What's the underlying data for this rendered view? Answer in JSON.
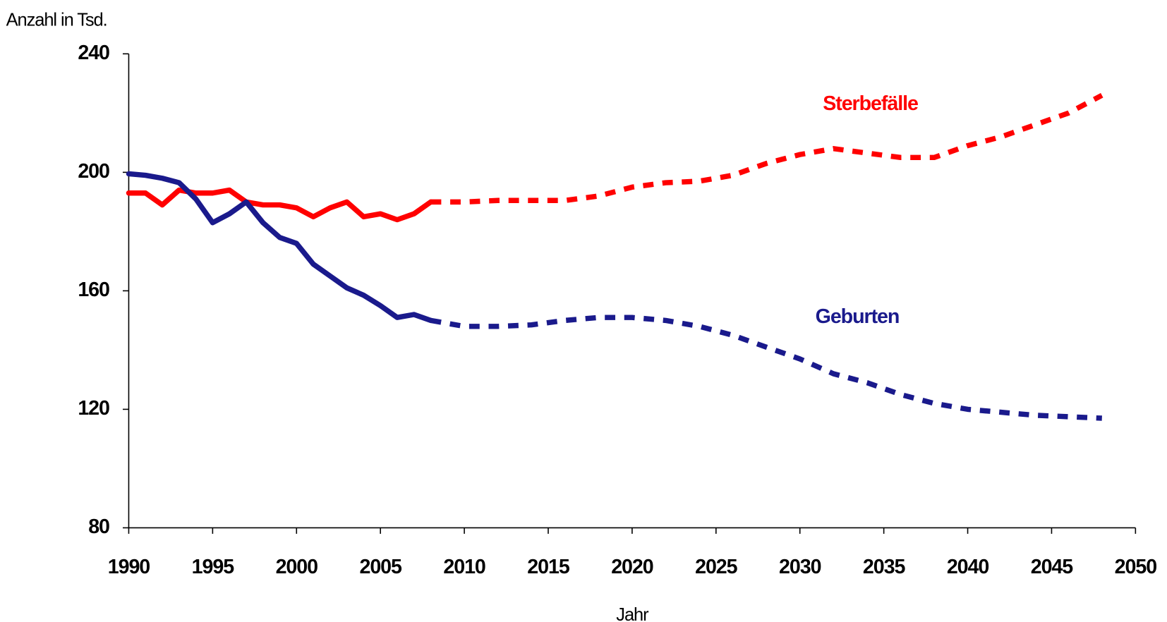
{
  "chart_data": {
    "type": "line",
    "ylabel": "Anzahl in Tsd.",
    "xlabel": "Jahr",
    "xlim": [
      1990,
      2050
    ],
    "xticks": [
      1990,
      1995,
      2000,
      2005,
      2010,
      2015,
      2020,
      2025,
      2030,
      2035,
      2040,
      2045,
      2050
    ],
    "ylim": [
      80,
      240
    ],
    "yticks": [
      80,
      120,
      160,
      200,
      240
    ],
    "dash_from": 2008,
    "series": [
      {
        "name": "Sterbefälle",
        "color": "#ff0000",
        "x": [
          1990,
          1991,
          1992,
          1993,
          1994,
          1995,
          1996,
          1997,
          1998,
          1999,
          2000,
          2001,
          2002,
          2003,
          2004,
          2005,
          2006,
          2007,
          2008,
          2010,
          2012,
          2014,
          2016,
          2018,
          2020,
          2022,
          2024,
          2026,
          2028,
          2030,
          2032,
          2034,
          2036,
          2038,
          2040,
          2042,
          2044,
          2046,
          2048
        ],
        "values": [
          193,
          193,
          189,
          194,
          193,
          193,
          194,
          190,
          189,
          189,
          188,
          185,
          188,
          190,
          185,
          186,
          184,
          186,
          190,
          190,
          190.5,
          190.5,
          190.5,
          192,
          195,
          196.5,
          197,
          199,
          203,
          206,
          208,
          206.5,
          205,
          205,
          209,
          212,
          216,
          220,
          226
        ]
      },
      {
        "name": "Geburten",
        "color": "#1a1a8c",
        "x": [
          1990,
          1991,
          1992,
          1993,
          1994,
          1995,
          1996,
          1997,
          1998,
          1999,
          2000,
          2001,
          2002,
          2003,
          2004,
          2005,
          2006,
          2007,
          2008,
          2010,
          2012,
          2014,
          2016,
          2018,
          2020,
          2022,
          2024,
          2026,
          2028,
          2030,
          2032,
          2034,
          2036,
          2038,
          2040,
          2042,
          2044,
          2046,
          2048
        ],
        "values": [
          199.5,
          199,
          198,
          196.5,
          191,
          183,
          186,
          190,
          183,
          178,
          176,
          169,
          165,
          161,
          158.5,
          155,
          151,
          152,
          150,
          148,
          148,
          148.5,
          150,
          151,
          151,
          150,
          148,
          145,
          141,
          137,
          132,
          129,
          125,
          122,
          120,
          119,
          118,
          117.5,
          117
        ]
      }
    ]
  }
}
